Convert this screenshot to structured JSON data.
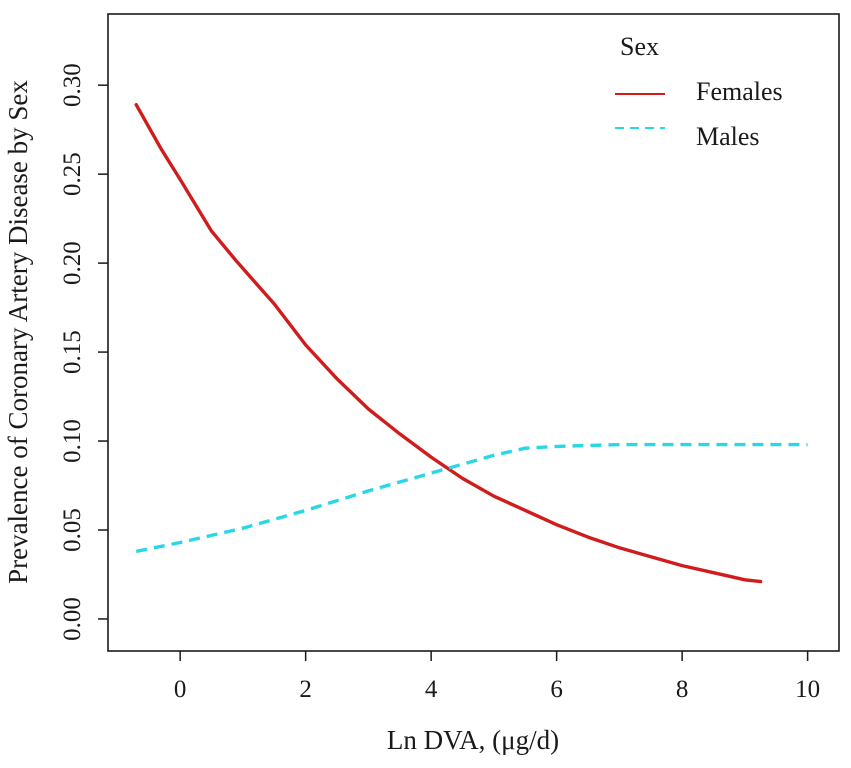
{
  "chart_data": {
    "type": "line",
    "title": "",
    "xlabel": "Ln DVA, (μg/d)",
    "ylabel": "Prevalence of  Coronary Artery Disease by Sex",
    "xlim": [
      -1.15,
      10.5
    ],
    "ylim": [
      -0.018,
      0.34
    ],
    "x_ticks": [
      0,
      2,
      4,
      6,
      8,
      10
    ],
    "x_tick_labels": [
      "0",
      "2",
      "4",
      "6",
      "8",
      "10"
    ],
    "y_ticks": [
      0.0,
      0.05,
      0.1,
      0.15,
      0.2,
      0.25,
      0.3
    ],
    "y_tick_labels": [
      "0.00",
      "0.05",
      "0.10",
      "0.15",
      "0.20",
      "0.25",
      "0.30"
    ],
    "legend": {
      "title": "Sex",
      "position": "top-right",
      "entries": [
        "Females",
        "Males"
      ]
    },
    "series": [
      {
        "name": "Females",
        "color": "#d01c1c",
        "dash": "solid",
        "x": [
          -0.7,
          -0.3,
          0,
          0.5,
          0.9,
          1.5,
          2,
          2.5,
          3,
          3.5,
          4,
          4.5,
          5,
          5.5,
          6,
          6.5,
          7,
          7.5,
          8,
          8.5,
          9,
          9.25
        ],
        "y": [
          0.289,
          0.264,
          0.247,
          0.218,
          0.201,
          0.177,
          0.154,
          0.135,
          0.118,
          0.104,
          0.091,
          0.079,
          0.069,
          0.061,
          0.053,
          0.046,
          0.04,
          0.035,
          0.03,
          0.026,
          0.022,
          0.021
        ]
      },
      {
        "name": "Males",
        "color": "#29d7e6",
        "dash": "dashed",
        "x": [
          -0.7,
          0,
          1,
          2,
          3,
          4,
          4.5,
          5,
          5.5,
          6,
          7,
          8,
          9,
          10
        ],
        "y": [
          0.038,
          0.043,
          0.051,
          0.061,
          0.072,
          0.082,
          0.087,
          0.092,
          0.096,
          0.097,
          0.098,
          0.098,
          0.098,
          0.098
        ]
      }
    ]
  }
}
